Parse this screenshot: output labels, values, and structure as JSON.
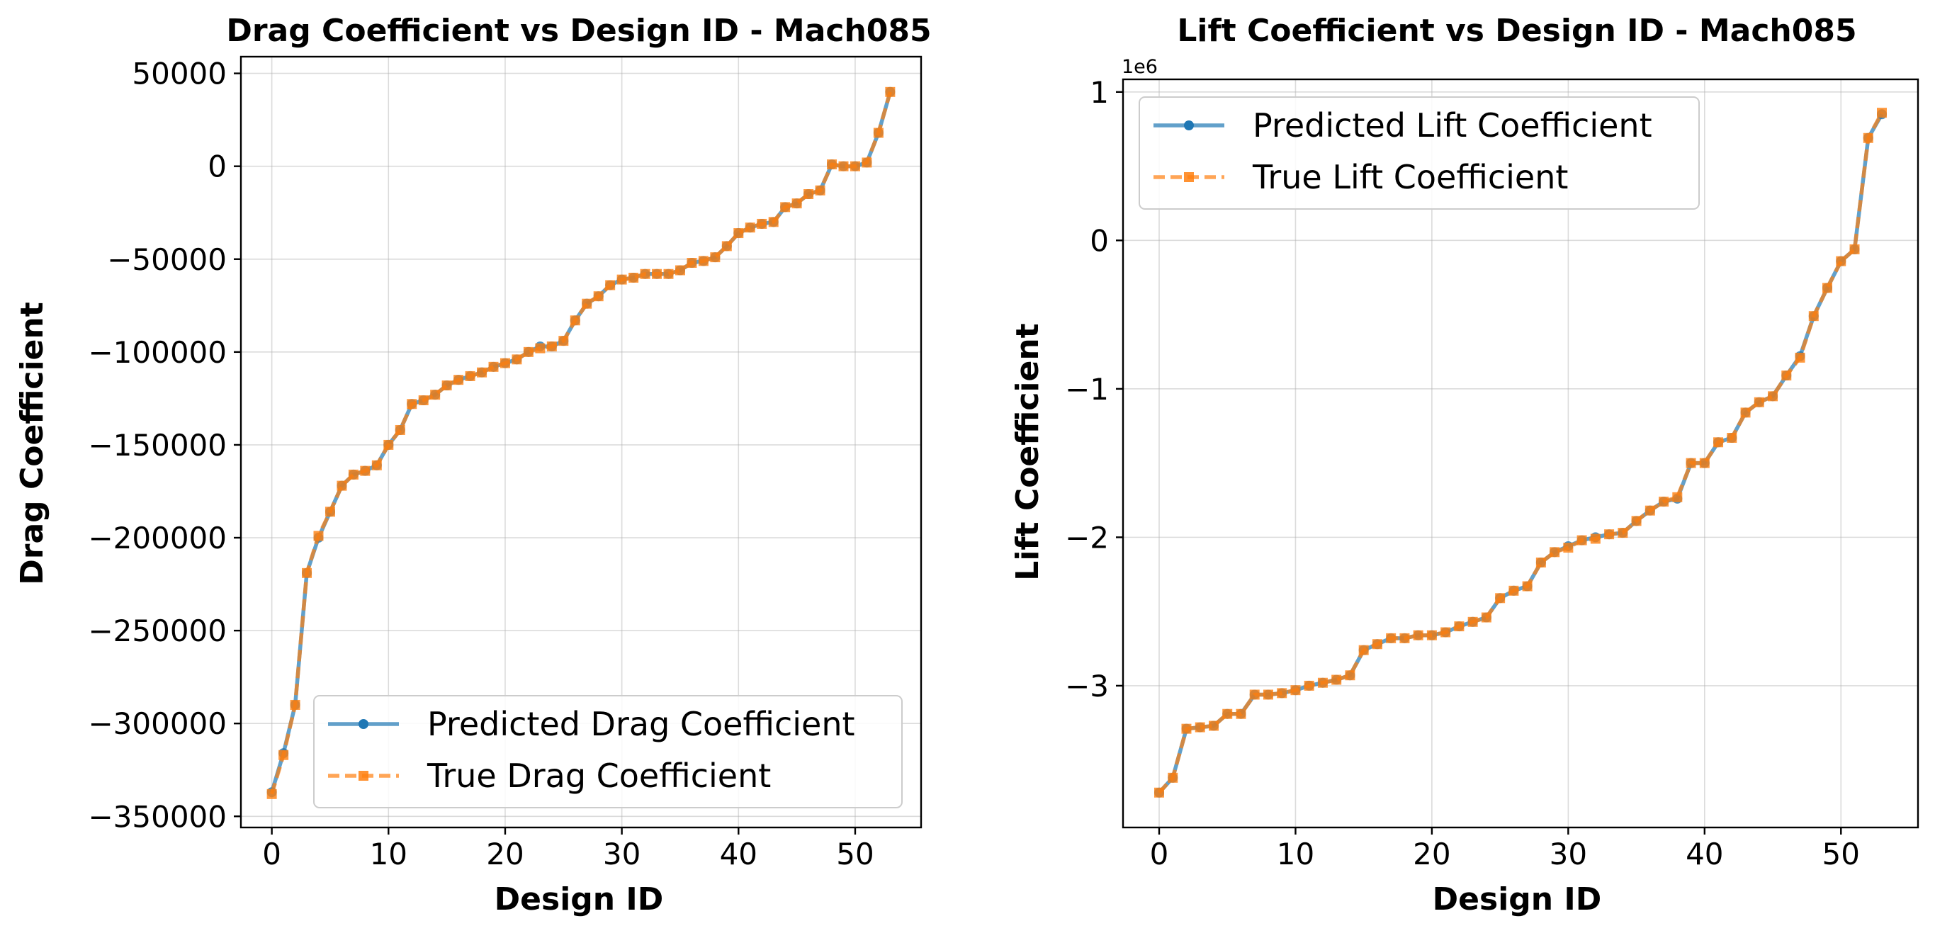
{
  "chart_data": [
    {
      "type": "line",
      "title": "Drag Coefficient vs Design ID - Mach085",
      "xlabel": "Design ID",
      "ylabel": "Drag Coefficient",
      "xlim": [
        -2.65,
        55.65
      ],
      "ylim": [
        -356000,
        59000
      ],
      "xticks": [
        0,
        10,
        20,
        30,
        40,
        50
      ],
      "xtick_labels": [
        "0",
        "10",
        "20",
        "30",
        "40",
        "50"
      ],
      "yticks": [
        50000,
        0,
        -50000,
        -100000,
        -150000,
        -200000,
        -250000,
        -300000,
        -350000
      ],
      "ytick_labels": [
        "50000",
        "0",
        "−50000",
        "−100000",
        "−150000",
        "−200000",
        "−250000",
        "−300000",
        "−350000"
      ],
      "offset_text": "",
      "grid": true,
      "legend_position": "lower-right",
      "colors": {
        "predicted": "#1f77b4",
        "true": "#ff7f0e"
      },
      "x": [
        0,
        1,
        2,
        3,
        4,
        5,
        6,
        7,
        8,
        9,
        10,
        11,
        12,
        13,
        14,
        15,
        16,
        17,
        18,
        19,
        20,
        21,
        22,
        23,
        24,
        25,
        26,
        27,
        28,
        29,
        30,
        31,
        32,
        33,
        34,
        35,
        36,
        37,
        38,
        39,
        40,
        41,
        42,
        43,
        44,
        45,
        46,
        47,
        48,
        49,
        50,
        51,
        52,
        53
      ],
      "series": [
        {
          "name": "Predicted Drag Coefficient",
          "values": [
            -337000,
            -316000,
            -290000,
            -219000,
            -200000,
            -186000,
            -172000,
            -166000,
            -164000,
            -161000,
            -150000,
            -142000,
            -128000,
            -126000,
            -123000,
            -118000,
            -115000,
            -113000,
            -111000,
            -108000,
            -106000,
            -104000,
            -100000,
            -97000,
            -97000,
            -94000,
            -83000,
            -74000,
            -70000,
            -64000,
            -61000,
            -60000,
            -58000,
            -58000,
            -58000,
            -56000,
            -52000,
            -51000,
            -49000,
            -43000,
            -36000,
            -33000,
            -31000,
            -30000,
            -22000,
            -20000,
            -15000,
            -13000,
            1000,
            0,
            0,
            2000,
            18000,
            40000
          ]
        },
        {
          "name": "True Drag Coefficient",
          "values": [
            -338000,
            -317000,
            -290000,
            -219000,
            -199000,
            -186000,
            -172000,
            -166000,
            -164000,
            -161000,
            -150000,
            -142000,
            -128000,
            -126000,
            -123000,
            -118000,
            -115000,
            -113000,
            -111000,
            -108000,
            -106000,
            -104000,
            -100000,
            -98000,
            -97000,
            -94000,
            -83000,
            -74000,
            -70000,
            -64000,
            -61000,
            -60000,
            -58000,
            -58000,
            -58000,
            -56000,
            -52000,
            -51000,
            -49000,
            -43000,
            -36000,
            -33000,
            -31000,
            -30000,
            -22000,
            -20000,
            -15000,
            -13000,
            1000,
            0,
            0,
            2000,
            18000,
            40000
          ]
        }
      ]
    },
    {
      "type": "line",
      "title": "Lift Coefficient vs Design ID - Mach085",
      "xlabel": "Design ID",
      "ylabel": "Lift Coefficient",
      "xlim": [
        -2.65,
        55.65
      ],
      "ylim": [
        -3.955,
        1.085
      ],
      "xticks": [
        0,
        10,
        20,
        30,
        40,
        50
      ],
      "xtick_labels": [
        "0",
        "10",
        "20",
        "30",
        "40",
        "50"
      ],
      "yticks": [
        1,
        0,
        -1,
        -2,
        -3
      ],
      "ytick_labels": [
        "1",
        "0",
        "−1",
        "−2",
        "−3"
      ],
      "offset_text": "1e6",
      "grid": true,
      "legend_position": "upper-left",
      "colors": {
        "predicted": "#1f77b4",
        "true": "#ff7f0e"
      },
      "x": [
        0,
        1,
        2,
        3,
        4,
        5,
        6,
        7,
        8,
        9,
        10,
        11,
        12,
        13,
        14,
        15,
        16,
        17,
        18,
        19,
        20,
        21,
        22,
        23,
        24,
        25,
        26,
        27,
        28,
        29,
        30,
        31,
        32,
        33,
        34,
        35,
        36,
        37,
        38,
        39,
        40,
        41,
        42,
        43,
        44,
        45,
        46,
        47,
        48,
        49,
        50,
        51,
        52,
        53
      ],
      "series": [
        {
          "name": "Predicted Lift Coefficient",
          "values": [
            -3.72,
            -3.62,
            -3.29,
            -3.28,
            -3.27,
            -3.19,
            -3.19,
            -3.06,
            -3.06,
            -3.05,
            -3.03,
            -3.0,
            -2.98,
            -2.96,
            -2.93,
            -2.76,
            -2.72,
            -2.68,
            -2.68,
            -2.66,
            -2.66,
            -2.64,
            -2.6,
            -2.57,
            -2.54,
            -2.41,
            -2.36,
            -2.33,
            -2.17,
            -2.1,
            -2.06,
            -2.02,
            -2.0,
            -1.98,
            -1.97,
            -1.89,
            -1.82,
            -1.76,
            -1.74,
            -1.5,
            -1.5,
            -1.36,
            -1.33,
            -1.16,
            -1.09,
            -1.05,
            -0.91,
            -0.78,
            -0.51,
            -0.32,
            -0.14,
            -0.06,
            0.69,
            0.85
          ]
        },
        {
          "name": "True Lift Coefficient",
          "values": [
            -3.72,
            -3.62,
            -3.29,
            -3.28,
            -3.27,
            -3.19,
            -3.19,
            -3.06,
            -3.06,
            -3.05,
            -3.03,
            -3.0,
            -2.98,
            -2.96,
            -2.93,
            -2.76,
            -2.72,
            -2.68,
            -2.68,
            -2.66,
            -2.66,
            -2.64,
            -2.6,
            -2.57,
            -2.54,
            -2.41,
            -2.36,
            -2.33,
            -2.17,
            -2.1,
            -2.07,
            -2.02,
            -2.01,
            -1.98,
            -1.97,
            -1.89,
            -1.82,
            -1.76,
            -1.73,
            -1.5,
            -1.5,
            -1.36,
            -1.33,
            -1.16,
            -1.09,
            -1.05,
            -0.91,
            -0.79,
            -0.51,
            -0.32,
            -0.14,
            -0.06,
            0.69,
            0.86
          ]
        }
      ]
    }
  ]
}
